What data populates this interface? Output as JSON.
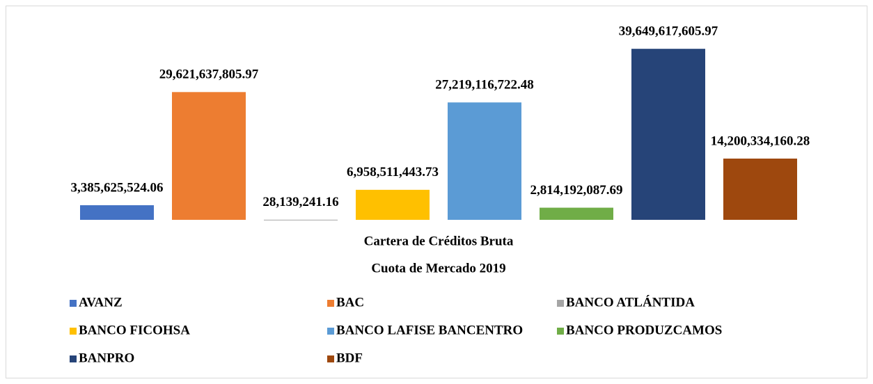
{
  "chart_data": {
    "type": "bar",
    "title": "Cuota de Mercado 2019",
    "categories": [
      "Cartera de Créditos Bruta"
    ],
    "ylim": [
      0,
      45000000000
    ],
    "series": [
      {
        "name": "AVANZ",
        "color": "#4472c4",
        "values": [
          3385625524.06
        ],
        "value_labels": [
          "3,385,625,524.06"
        ]
      },
      {
        "name": "BAC",
        "color": "#ed7d31",
        "values": [
          29621637805.97
        ],
        "value_labels": [
          "29,621,637,805.97"
        ]
      },
      {
        "name": "BANCO ATLÁNTIDA",
        "color": "#a5a5a5",
        "values": [
          28139241.16
        ],
        "value_labels": [
          "28,139,241.16"
        ]
      },
      {
        "name": "BANCO FICOHSA",
        "color": "#ffc000",
        "values": [
          6958511443.73
        ],
        "value_labels": [
          "6,958,511,443.73"
        ]
      },
      {
        "name": "BANCO LAFISE BANCENTRO",
        "color": "#5b9bd5",
        "values": [
          27219116722.48
        ],
        "value_labels": [
          "27,219,116,722.48"
        ]
      },
      {
        "name": "BANCO PRODUZCAMOS",
        "color": "#70ad47",
        "values": [
          2814192087.69
        ],
        "value_labels": [
          "2,814,192,087.69"
        ]
      },
      {
        "name": "BANPRO",
        "color": "#264478",
        "values": [
          39649617605.97
        ],
        "value_labels": [
          "39,649,617,605.97"
        ]
      },
      {
        "name": "BDF",
        "color": "#9e480e",
        "values": [
          14200334160.28
        ],
        "value_labels": [
          "14,200,334,160.28"
        ]
      }
    ]
  }
}
